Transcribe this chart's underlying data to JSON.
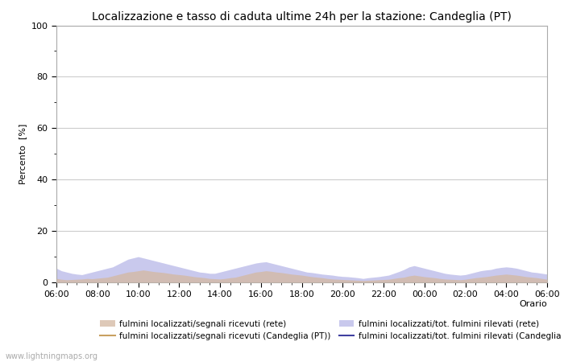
{
  "title": "Localizzazione e tasso di caduta ultime 24h per la stazione: Candeglia (PT)",
  "xlabel": "Orario",
  "ylabel": "Percento  [%]",
  "ylim": [
    0,
    100
  ],
  "yticks_major": [
    0,
    20,
    40,
    60,
    80,
    100
  ],
  "yticks_minor": [
    10,
    30,
    50,
    70,
    90
  ],
  "background_color": "#ffffff",
  "plot_bg_color": "#ffffff",
  "grid_color": "#cccccc",
  "watermark": "www.lightningmaps.org",
  "area_rete_color": "#d4b8a0",
  "area_rete_alpha": 0.75,
  "area_candeglia_color": "#b8b8e8",
  "area_candeglia_alpha": 0.75,
  "line_rete_color": "#c8a060",
  "line_candeglia_color": "#4040a0",
  "legend_labels": [
    "fulmini localizzati/segnali ricevuti (rete)",
    "fulmini localizzati/segnali ricevuti (Candeglia (PT))",
    "fulmini localizzati/tot. fulmini rilevati (rete)",
    "fulmini localizzati/tot. fulmini rilevati (Candeglia (PT))"
  ],
  "n_points": 97,
  "rete_fill_values": [
    1.5,
    1.2,
    1.0,
    1.1,
    1.2,
    1.3,
    1.5,
    1.4,
    1.6,
    1.8,
    2.0,
    2.5,
    3.0,
    3.5,
    4.0,
    4.2,
    4.5,
    4.8,
    4.5,
    4.2,
    4.0,
    3.8,
    3.5,
    3.2,
    3.0,
    2.8,
    2.5,
    2.2,
    2.0,
    1.8,
    1.5,
    1.4,
    1.3,
    1.5,
    1.8,
    2.0,
    2.5,
    3.0,
    3.5,
    4.0,
    4.2,
    4.5,
    4.3,
    4.0,
    3.8,
    3.5,
    3.2,
    3.0,
    2.8,
    2.5,
    2.2,
    2.0,
    1.8,
    1.5,
    1.3,
    1.2,
    1.1,
    1.0,
    0.9,
    0.8,
    0.7,
    0.8,
    0.9,
    1.0,
    1.1,
    1.2,
    1.5,
    1.8,
    2.0,
    2.5,
    2.8,
    2.5,
    2.2,
    2.0,
    1.8,
    1.5,
    1.3,
    1.2,
    1.1,
    1.0,
    1.2,
    1.5,
    1.8,
    2.0,
    2.2,
    2.5,
    2.8,
    3.0,
    3.2,
    3.0,
    2.8,
    2.5,
    2.2,
    2.0,
    1.8,
    1.5,
    1.2
  ],
  "candeglia_fill_values": [
    5.5,
    4.5,
    4.0,
    3.5,
    3.2,
    3.0,
    3.5,
    4.0,
    4.5,
    5.0,
    5.5,
    6.0,
    7.0,
    8.0,
    9.0,
    9.5,
    10.0,
    9.5,
    9.0,
    8.5,
    8.0,
    7.5,
    7.0,
    6.5,
    6.0,
    5.5,
    5.0,
    4.5,
    4.0,
    3.8,
    3.5,
    3.5,
    4.0,
    4.5,
    5.0,
    5.5,
    6.0,
    6.5,
    7.0,
    7.5,
    7.8,
    8.0,
    7.5,
    7.0,
    6.5,
    6.0,
    5.5,
    5.0,
    4.5,
    4.0,
    3.8,
    3.5,
    3.2,
    3.0,
    2.8,
    2.5,
    2.3,
    2.2,
    2.0,
    1.8,
    1.5,
    1.8,
    2.0,
    2.2,
    2.5,
    2.8,
    3.5,
    4.2,
    5.0,
    6.0,
    6.5,
    6.0,
    5.5,
    5.0,
    4.5,
    4.0,
    3.5,
    3.2,
    3.0,
    2.8,
    3.0,
    3.5,
    4.0,
    4.5,
    4.8,
    5.0,
    5.5,
    5.8,
    6.0,
    5.8,
    5.5,
    5.0,
    4.5,
    4.0,
    3.8,
    3.5,
    3.2
  ]
}
